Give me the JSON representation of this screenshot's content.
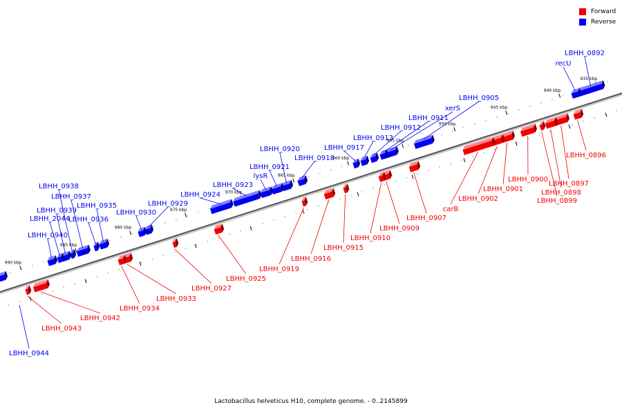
{
  "legend": {
    "forward": {
      "label": "Forward",
      "color": "#f00000"
    },
    "reverse": {
      "label": "Reverse",
      "color": "#0000f0"
    }
  },
  "caption": "Lactobacillus helveticus H10, complete genome. - 0..2145899",
  "kbp_labels": [
    "935 kbp",
    "940 kbp",
    "945 kbp",
    "950 kbp",
    "955 kbp",
    "960 kbp",
    "965 kbp",
    "970 kbp",
    "975 kbp",
    "980 kbp",
    "985 kbp",
    "990 kbp"
  ],
  "genes_reverse": [
    "LBHH_0892",
    "recU",
    "LBHH_0905",
    "xerS",
    "LBHH_0911",
    "LBHH_0912",
    "LBHH_0913",
    "LBHH_0917",
    "LBHH_0918",
    "LBHH_0920",
    "LBHH_0921",
    "lysR",
    "LBHH_0923",
    "LBHH_0924",
    "LBHH_0929",
    "LBHH_0930",
    "LBHH_0935",
    "LBHH_0936",
    "LBHH_0937",
    "LBHH_0938",
    "LBHH_0939",
    "LBHH_2044",
    "LBHH_0940",
    "LBHH_0944"
  ],
  "genes_forward": [
    "LBHH_0896",
    "LBHH_0897",
    "LBHH_0898",
    "LBHH_0899",
    "LBHH_0900",
    "LBHH_0901",
    "LBHH_0902",
    "carB",
    "LBHH_0907",
    "LBHH_0909",
    "LBHH_0910",
    "LBHH_0915",
    "LBHH_0916",
    "LBHH_0919",
    "LBHH_0925",
    "LBHH_0927",
    "LBHH_0933",
    "LBHH_0934",
    "LBHH_0942",
    "LBHH_0943"
  ]
}
